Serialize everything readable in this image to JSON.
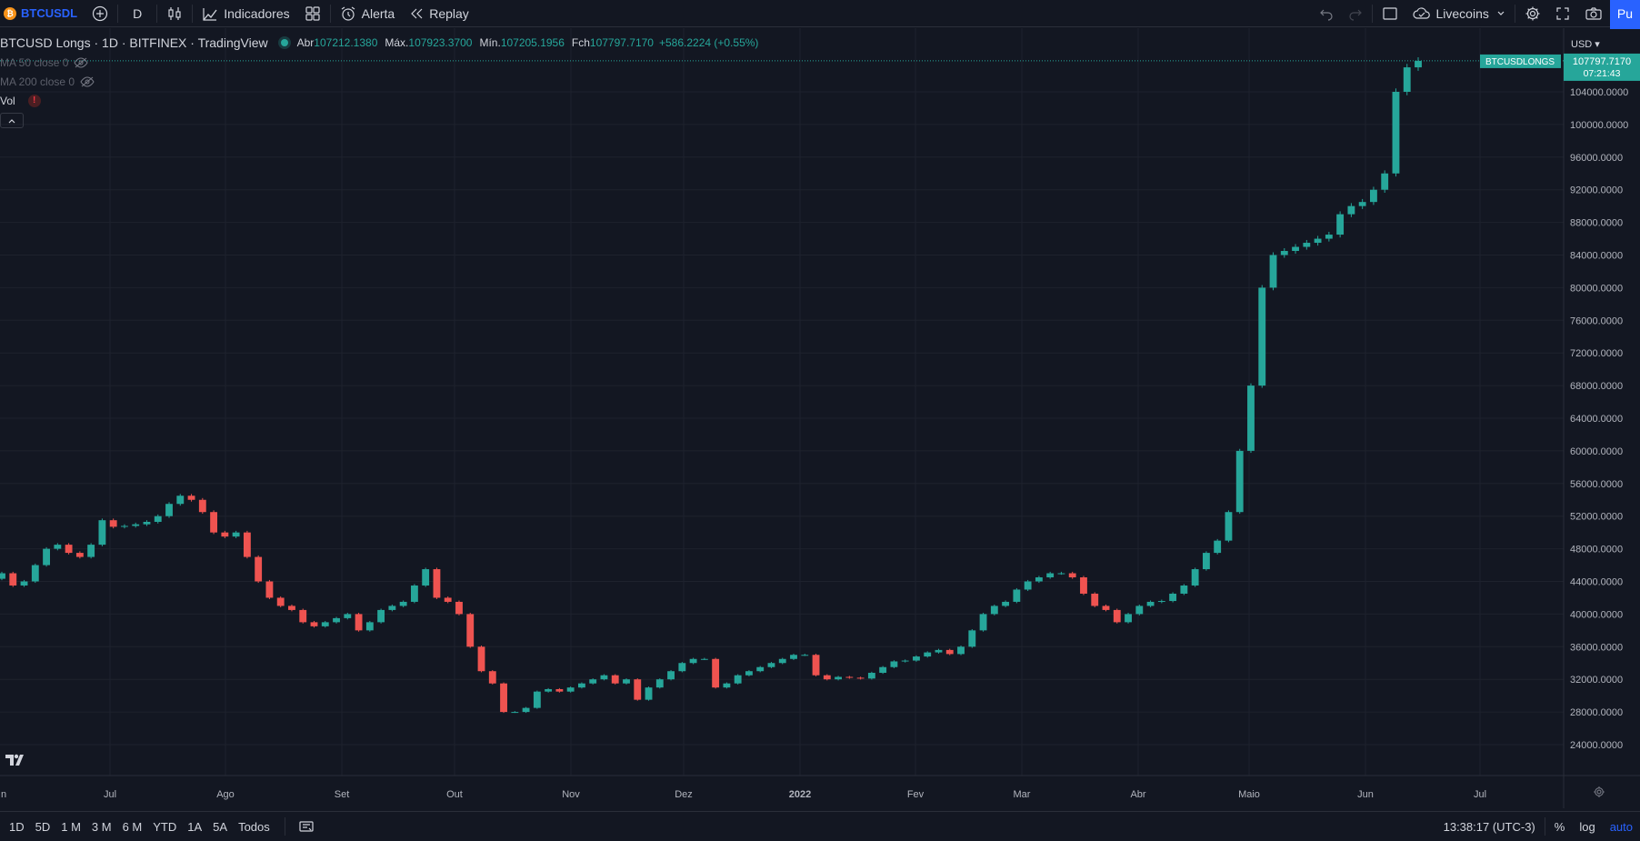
{
  "toolbar": {
    "symbol_badge": "₿",
    "symbol": "BTCUSDL",
    "interval": "D",
    "indicators_label": "Indicadores",
    "alert_label": "Alerta",
    "replay_label": "Replay",
    "layout_name": "Livecoins",
    "publish_label": "Pu"
  },
  "legend": {
    "title": "BTCUSD Longs · 1D · BITFINEX · TradingView",
    "open_label": "Abr",
    "open": "107212.1380",
    "high_label": "Máx.",
    "high": "107923.3700",
    "low_label": "Mín.",
    "low": "107205.1956",
    "close_label": "Fch",
    "close": "107797.7170",
    "change": "+586.2224 (+0.55%)",
    "ma50": "MA 50 close 0",
    "ma200": "MA 200 close 0",
    "vol": "Vol",
    "vol_warning": "!"
  },
  "price_axis": {
    "currency": "USD",
    "last_price": "107797.7170",
    "countdown": "07:21:43",
    "symbol_tag": "BTCUSDLONGS",
    "ticks": [
      "104000.0000",
      "100000.0000",
      "96000.0000",
      "92000.0000",
      "88000.0000",
      "84000.0000",
      "80000.0000",
      "76000.0000",
      "72000.0000",
      "68000.0000",
      "64000.0000",
      "60000.0000",
      "56000.0000",
      "52000.0000",
      "48000.0000",
      "44000.0000",
      "40000.0000",
      "36000.0000",
      "32000.0000",
      "28000.0000",
      "24000.0000"
    ]
  },
  "time_axis": {
    "labels": [
      "n",
      "Jul",
      "Ago",
      "Set",
      "Out",
      "Nov",
      "Dez",
      "2022",
      "Fev",
      "Mar",
      "Abr",
      "Maio",
      "Jun",
      "Jul"
    ]
  },
  "bottombar": {
    "ranges": [
      "1D",
      "5D",
      "1 M",
      "3 M",
      "6 M",
      "YTD",
      "1A",
      "5A",
      "Todos"
    ],
    "time": "13:38:17 (UTC-3)",
    "percent": "%",
    "log": "log",
    "auto": "auto"
  },
  "colors": {
    "background": "#131722",
    "grid": "#1e222d",
    "up": "#26a69a",
    "down": "#ef5350",
    "accent": "#2962ff"
  },
  "chart_data": {
    "type": "candlestick",
    "symbol": "BTCUSD Longs",
    "interval": "1D",
    "y_unit": "USD",
    "ylim": [
      22000,
      110000
    ],
    "x": [
      "2021-06",
      "2021-07",
      "2021-08",
      "2021-09",
      "2021-10",
      "2021-11",
      "2021-12",
      "2022-01",
      "2022-02",
      "2022-03",
      "2022-04",
      "2022-05",
      "2022-06",
      "2022-07"
    ],
    "close_path": [
      45000,
      43500,
      44000,
      46000,
      48000,
      48500,
      47500,
      47000,
      48500,
      51500,
      50700,
      50800,
      51000,
      51300,
      52000,
      53500,
      54500,
      54000,
      52500,
      50000,
      49500,
      50000,
      47000,
      44000,
      42000,
      41000,
      40500,
      39000,
      38500,
      39000,
      39500,
      40000,
      38000,
      39000,
      40500,
      41000,
      41500,
      43500,
      45500,
      42000,
      41500,
      40000,
      36000,
      33000,
      31500,
      28000,
      28000,
      28500,
      30500,
      30800,
      30500,
      31000,
      31500,
      32000,
      32500,
      31500,
      32000,
      29500,
      31000,
      32000,
      33000,
      34000,
      34500,
      34500,
      31000,
      31500,
      32500,
      33000,
      33500,
      34000,
      34500,
      35000,
      35000,
      32500,
      32000,
      32300,
      32200,
      32100,
      32800,
      33500,
      34200,
      34300,
      34800,
      35300,
      35600,
      35100,
      36000,
      38000,
      40000,
      41000,
      41500,
      43000,
      44000,
      44500,
      45000,
      45000,
      44500,
      42500,
      41000,
      40500,
      39000,
      40000,
      41000,
      41500,
      41600,
      42500,
      43500,
      45500,
      47500,
      49000,
      52500,
      60000,
      68000,
      80000,
      84000,
      84500,
      85000,
      85500,
      86000,
      86500,
      89000,
      90000,
      90500,
      92000,
      94000,
      104000,
      107000,
      107797
    ]
  }
}
